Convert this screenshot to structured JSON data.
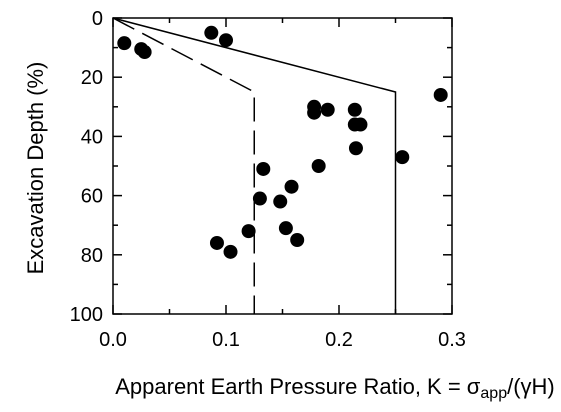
{
  "chart_data": {
    "type": "scatter",
    "xlabel": "Apparent Earth Pressure Ratio, K = σ",
    "xlabel_sub": "app",
    "xlabel_tail": "/(γH)",
    "ylabel": "Excavation Depth (%)",
    "xlim": [
      0.0,
      0.3
    ],
    "ylim": [
      0,
      100
    ],
    "y_inverted": true,
    "x_ticks": [
      "0.0",
      "0.1",
      "0.2",
      "0.3"
    ],
    "y_ticks": [
      "0",
      "20",
      "40",
      "60",
      "80",
      "100"
    ],
    "grid": false,
    "legend": "none",
    "series": [
      {
        "marker": "filled-circle",
        "color": "#000000",
        "points": [
          {
            "x": 0.01,
            "y": 8.5
          },
          {
            "x": 0.025,
            "y": 10.5
          },
          {
            "x": 0.028,
            "y": 11.5
          },
          {
            "x": 0.087,
            "y": 5
          },
          {
            "x": 0.1,
            "y": 7.5
          },
          {
            "x": 0.178,
            "y": 30
          },
          {
            "x": 0.178,
            "y": 32
          },
          {
            "x": 0.19,
            "y": 31
          },
          {
            "x": 0.214,
            "y": 31
          },
          {
            "x": 0.214,
            "y": 36
          },
          {
            "x": 0.219,
            "y": 36
          },
          {
            "x": 0.215,
            "y": 44
          },
          {
            "x": 0.182,
            "y": 50
          },
          {
            "x": 0.133,
            "y": 51
          },
          {
            "x": 0.158,
            "y": 57
          },
          {
            "x": 0.13,
            "y": 61
          },
          {
            "x": 0.148,
            "y": 62
          },
          {
            "x": 0.153,
            "y": 71
          },
          {
            "x": 0.12,
            "y": 72
          },
          {
            "x": 0.163,
            "y": 75
          },
          {
            "x": 0.092,
            "y": 76
          },
          {
            "x": 0.104,
            "y": 79
          },
          {
            "x": 0.256,
            "y": 47
          },
          {
            "x": 0.29,
            "y": 26
          }
        ]
      }
    ],
    "envelopes": [
      {
        "style": "solid",
        "color": "#000000",
        "points": [
          [
            0.0,
            0
          ],
          [
            0.25,
            25
          ],
          [
            0.25,
            100
          ]
        ]
      },
      {
        "style": "dashed",
        "color": "#000000",
        "points": [
          [
            0.0,
            0
          ],
          [
            0.125,
            25
          ],
          [
            0.125,
            100
          ]
        ]
      }
    ]
  }
}
